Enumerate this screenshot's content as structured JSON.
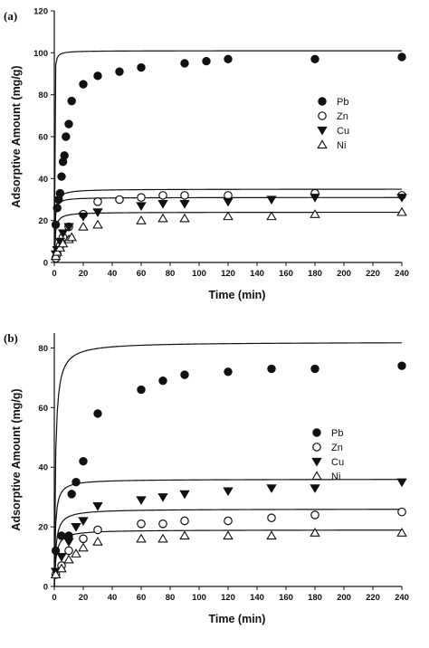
{
  "chart_data": [
    {
      "type": "scatter",
      "panel_label": "(a)",
      "xlabel": "Time (min)",
      "ylabel": "Adsorptive Amount (mg/g)",
      "xlim": [
        0,
        240
      ],
      "ylim": [
        0,
        120
      ],
      "xticks": [
        0,
        20,
        40,
        60,
        80,
        100,
        120,
        140,
        160,
        180,
        200,
        220,
        240
      ],
      "yticks": [
        0,
        20,
        40,
        60,
        80,
        100,
        120
      ],
      "grid": false,
      "legend_position": "right",
      "series": [
        {
          "name": "Pb",
          "marker": "filled-circle",
          "points": [
            [
              1,
              18
            ],
            [
              2,
              26
            ],
            [
              3,
              30
            ],
            [
              4,
              33
            ],
            [
              5,
              41
            ],
            [
              6,
              48
            ],
            [
              7,
              51
            ],
            [
              8,
              60
            ],
            [
              10,
              66
            ],
            [
              12,
              77
            ],
            [
              20,
              85
            ],
            [
              30,
              89
            ],
            [
              45,
              91
            ],
            [
              60,
              93
            ],
            [
              90,
              95
            ],
            [
              105,
              96
            ],
            [
              120,
              97
            ],
            [
              180,
              97
            ],
            [
              240,
              98
            ]
          ],
          "fit": {
            "qe": 101,
            "k": 0.14
          }
        },
        {
          "name": "Zn",
          "marker": "open-circle",
          "points": [
            [
              1,
              2
            ],
            [
              2,
              4
            ],
            [
              4,
              8
            ],
            [
              6,
              12
            ],
            [
              10,
              17
            ],
            [
              20,
              23
            ],
            [
              30,
              29
            ],
            [
              45,
              30
            ],
            [
              60,
              31
            ],
            [
              75,
              32
            ],
            [
              90,
              32
            ],
            [
              120,
              32
            ],
            [
              180,
              33
            ],
            [
              240,
              32
            ]
          ],
          "fit": {
            "qe": 35,
            "k": 0.06
          }
        },
        {
          "name": "Cu",
          "marker": "filled-triangle-down",
          "points": [
            [
              1,
              4
            ],
            [
              2,
              6
            ],
            [
              4,
              10
            ],
            [
              6,
              14
            ],
            [
              10,
              17
            ],
            [
              20,
              22
            ],
            [
              30,
              24
            ],
            [
              60,
              27
            ],
            [
              75,
              28
            ],
            [
              90,
              28
            ],
            [
              120,
              29
            ],
            [
              150,
              30
            ],
            [
              180,
              31
            ],
            [
              240,
              31
            ]
          ],
          "fit": {
            "qe": 31,
            "k": 0.1
          }
        },
        {
          "name": "Ni",
          "marker": "open-triangle-up",
          "points": [
            [
              1,
              3
            ],
            [
              2,
              5
            ],
            [
              4,
              7
            ],
            [
              6,
              9
            ],
            [
              10,
              11
            ],
            [
              12,
              12
            ],
            [
              20,
              17
            ],
            [
              30,
              18
            ],
            [
              60,
              20
            ],
            [
              75,
              21
            ],
            [
              90,
              21
            ],
            [
              120,
              22
            ],
            [
              150,
              22
            ],
            [
              180,
              23
            ],
            [
              240,
              24
            ]
          ],
          "fit": {
            "qe": 24,
            "k": 0.07
          }
        }
      ]
    },
    {
      "type": "scatter",
      "panel_label": "(b)",
      "xlabel": "Time (min)",
      "ylabel": "Adsorptive Amount (mg/g)",
      "xlim": [
        0,
        240
      ],
      "ylim": [
        0,
        85
      ],
      "xticks": [
        0,
        20,
        40,
        60,
        80,
        100,
        120,
        140,
        160,
        180,
        200,
        220,
        240
      ],
      "yticks": [
        0,
        20,
        40,
        60,
        80
      ],
      "grid": false,
      "legend_position": "right",
      "series": [
        {
          "name": "Pb",
          "marker": "filled-circle",
          "points": [
            [
              1,
              12
            ],
            [
              5,
              17
            ],
            [
              10,
              17
            ],
            [
              12,
              31
            ],
            [
              15,
              35
            ],
            [
              20,
              42
            ],
            [
              30,
              58
            ],
            [
              60,
              66
            ],
            [
              75,
              69
            ],
            [
              90,
              71
            ],
            [
              120,
              72
            ],
            [
              150,
              73
            ],
            [
              180,
              73
            ],
            [
              240,
              74
            ]
          ],
          "fit": {
            "qe": 82,
            "k": 0.015
          }
        },
        {
          "name": "Zn",
          "marker": "open-circle",
          "points": [
            [
              1,
              4
            ],
            [
              5,
              7
            ],
            [
              10,
              12
            ],
            [
              20,
              16
            ],
            [
              30,
              19
            ],
            [
              60,
              21
            ],
            [
              75,
              21
            ],
            [
              90,
              22
            ],
            [
              120,
              22
            ],
            [
              150,
              23
            ],
            [
              180,
              24
            ],
            [
              240,
              25
            ]
          ],
          "fit": {
            "qe": 26,
            "k": 0.035
          }
        },
        {
          "name": "Cu",
          "marker": "filled-triangle-down",
          "points": [
            [
              1,
              5
            ],
            [
              5,
              10
            ],
            [
              10,
              15
            ],
            [
              15,
              20
            ],
            [
              20,
              22
            ],
            [
              30,
              27
            ],
            [
              60,
              29
            ],
            [
              75,
              30
            ],
            [
              90,
              31
            ],
            [
              120,
              32
            ],
            [
              150,
              33
            ],
            [
              180,
              33
            ],
            [
              240,
              35
            ]
          ],
          "fit": {
            "qe": 36,
            "k": 0.04
          }
        },
        {
          "name": "Ni",
          "marker": "open-triangle-up",
          "points": [
            [
              1,
              4
            ],
            [
              5,
              6
            ],
            [
              10,
              9
            ],
            [
              15,
              11
            ],
            [
              20,
              13
            ],
            [
              30,
              15
            ],
            [
              60,
              16
            ],
            [
              75,
              16
            ],
            [
              90,
              17
            ],
            [
              120,
              17
            ],
            [
              150,
              17
            ],
            [
              180,
              18
            ],
            [
              240,
              18
            ]
          ],
          "fit": {
            "qe": 19,
            "k": 0.045
          }
        }
      ]
    }
  ]
}
